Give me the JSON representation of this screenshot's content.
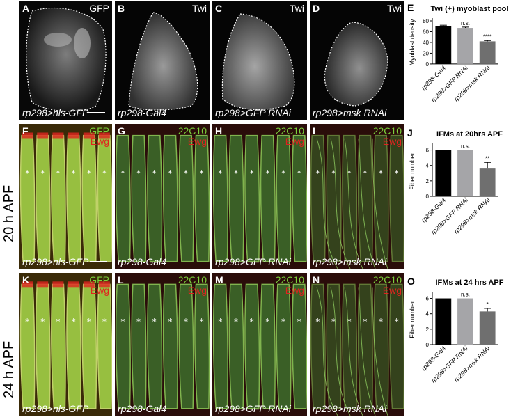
{
  "row_labels": {
    "row2": "20 h APF",
    "row3": "24 h APF"
  },
  "panels": {
    "A": {
      "letter": "A",
      "channel": "GFP",
      "genotype": "rp298>nls-GFP"
    },
    "B": {
      "letter": "B",
      "channel": "Twi",
      "genotype": "rp298-Gal4"
    },
    "C": {
      "letter": "C",
      "channel": "Twi",
      "genotype": "rp298>GFP RNAi"
    },
    "D": {
      "letter": "D",
      "channel": "Twi",
      "genotype": "rp298>msk RNAi"
    },
    "F": {
      "letter": "F",
      "ch1": "GFP",
      "ch2": "Ewg",
      "genotype": "rp298>nls-GFP"
    },
    "G": {
      "letter": "G",
      "ch1": "22C10",
      "ch2": "Ewg",
      "genotype": "rp298-Gal4"
    },
    "H": {
      "letter": "H",
      "ch1": "22C10",
      "ch2": "Ewg",
      "genotype": "rp298>GFP RNAi"
    },
    "I": {
      "letter": "I",
      "ch1": "22C10",
      "ch2": "Ewg",
      "genotype": "rp298>msk RNAi"
    },
    "K": {
      "letter": "K",
      "ch1": "GFP",
      "ch2": "Ewg",
      "genotype": "rp298>nls-GFP"
    },
    "L": {
      "letter": "L",
      "ch1": "22C10",
      "ch2": "Ewg",
      "genotype": "rp298-Gal4"
    },
    "M": {
      "letter": "M",
      "ch1": "22C10",
      "ch2": "Ewg",
      "genotype": "rp298>GFP RNAi"
    },
    "N": {
      "letter": "N",
      "ch1": "22C10",
      "ch2": "Ewg",
      "genotype": "rp298>msk RNAi"
    }
  },
  "colors": {
    "green": "#7ad13a",
    "red": "#e0231f",
    "bar1": "#000000",
    "bar2": "#a5a5a8",
    "bar3": "#6f6f6f"
  },
  "chart_data": [
    {
      "letter": "E",
      "type": "bar",
      "title": "Twi (+) myoblast pool",
      "ylabel": "Myoblast density",
      "categories": [
        "rp298-Gal4",
        "rp298>GFP RNAi",
        "rp298>msk RNAi"
      ],
      "values": [
        70,
        67,
        42
      ],
      "errors": [
        2,
        1.5,
        1.5
      ],
      "significance": [
        "",
        "n.s.",
        "****"
      ],
      "ylim": [
        0,
        80
      ],
      "yticks": [
        "0",
        "20",
        "40",
        "60",
        "80"
      ],
      "tick_values": [
        0,
        20,
        40,
        60,
        80
      ]
    },
    {
      "letter": "J",
      "type": "bar",
      "title": "IFMs at 20hrs APF",
      "ylabel": "Fiber number",
      "categories": [
        "rp298-Gal4",
        "rp298>GFP RNAi",
        "rp298>msk RNAi"
      ],
      "values": [
        6,
        6,
        3.6
      ],
      "errors": [
        0,
        0,
        0.8
      ],
      "significance": [
        "",
        "n.s.",
        "**"
      ],
      "ylim": [
        0,
        6.5
      ],
      "yticks": [
        "0",
        "2",
        "4",
        "6"
      ],
      "tick_values": [
        0,
        2,
        4,
        6
      ]
    },
    {
      "letter": "O",
      "type": "bar",
      "title": "IFMs at 24 hrs APF",
      "ylabel": "Fiber number",
      "categories": [
        "rp298-Gal4",
        "rp298>GFP RNAi",
        "rp298>msk RNAi"
      ],
      "values": [
        6,
        6,
        4.3
      ],
      "errors": [
        0,
        0,
        0.4
      ],
      "significance": [
        "",
        "n.s.",
        "*"
      ],
      "ylim": [
        0,
        6.5
      ],
      "yticks": [
        "0",
        "2",
        "4",
        "6"
      ],
      "tick_values": [
        0,
        2,
        4,
        6
      ]
    }
  ]
}
